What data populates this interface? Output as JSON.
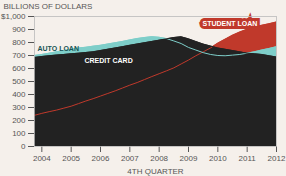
{
  "chart_data": {
    "type": "area",
    "x": [
      2003.75,
      2004,
      2004.25,
      2004.5,
      2004.75,
      2005,
      2005.25,
      2005.5,
      2005.75,
      2006,
      2006.25,
      2006.5,
      2006.75,
      2007,
      2007.25,
      2007.5,
      2007.75,
      2008,
      2008.25,
      2008.5,
      2008.75,
      2009,
      2009.25,
      2009.5,
      2009.75,
      2010,
      2010.25,
      2010.5,
      2010.75,
      2011,
      2011.25,
      2011.5,
      2011.75,
      2012
    ],
    "xlim": [
      2003.75,
      2012
    ],
    "xticks": [
      2004,
      2005,
      2006,
      2007,
      2008,
      2009,
      2010,
      2011,
      2012
    ],
    "ylim": [
      0,
      1000
    ],
    "yticks": [
      0,
      100,
      200,
      300,
      400,
      500,
      600,
      700,
      800,
      900,
      {
        "value": 1000,
        "label": "$1,000"
      }
    ],
    "xlabel": "4TH QUARTER",
    "ylabel": "BILLIONS OF DOLLARS",
    "grid": false,
    "stacked": false,
    "series": [
      {
        "name": "STUDENT LOAN",
        "color": "#c0392b",
        "values": [
          240,
          255,
          268,
          280,
          295,
          310,
          330,
          350,
          368,
          388,
          408,
          428,
          450,
          472,
          492,
          515,
          538,
          560,
          582,
          605,
          635,
          665,
          698,
          728,
          758,
          795,
          825,
          855,
          880,
          902,
          918,
          932,
          944,
          958
        ]
      },
      {
        "name": "AUTO LOAN",
        "color": "#7ecec9",
        "values": [
          700,
          708,
          718,
          728,
          738,
          748,
          758,
          763,
          772,
          778,
          788,
          798,
          808,
          820,
          830,
          838,
          845,
          840,
          830,
          812,
          792,
          762,
          742,
          722,
          708,
          700,
          698,
          703,
          708,
          718,
          728,
          742,
          754,
          768
        ]
      },
      {
        "name": "CREDIT CARD",
        "color": "#222222",
        "values": [
          685,
          692,
          698,
          703,
          708,
          713,
          718,
          723,
          728,
          738,
          748,
          758,
          768,
          778,
          788,
          798,
          808,
          818,
          828,
          838,
          844,
          828,
          808,
          788,
          773,
          758,
          748,
          738,
          728,
          718,
          713,
          708,
          698,
          688
        ]
      }
    ]
  }
}
